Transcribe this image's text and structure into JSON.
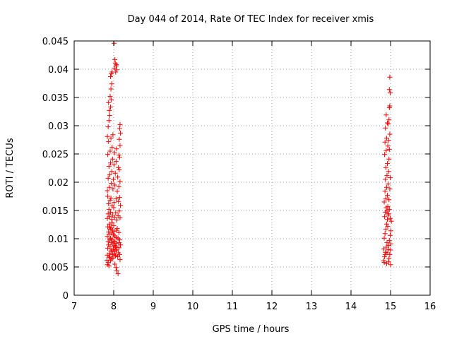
{
  "chart_data": {
    "type": "scatter",
    "title": "Day 044 of 2014, Rate Of TEC Index for receiver xmis",
    "xlabel": "GPS time / hours",
    "ylabel": "ROTI / TECUs",
    "xlim": [
      7,
      16
    ],
    "ylim": [
      0,
      0.045
    ],
    "xticks": [
      7,
      8,
      9,
      10,
      11,
      12,
      13,
      14,
      15,
      16
    ],
    "yticks": [
      0,
      0.005,
      0.01,
      0.015,
      0.02,
      0.025,
      0.03,
      0.035,
      0.04,
      0.045
    ],
    "xtick_labels": [
      "7",
      "8",
      "9",
      "10",
      "11",
      "12",
      "13",
      "14",
      "15",
      "16"
    ],
    "ytick_labels": [
      "0",
      "0.005",
      "0.01",
      "0.015",
      "0.02",
      "0.025",
      "0.03",
      "0.035",
      "0.04",
      "0.045"
    ],
    "grid": true,
    "marker": "+",
    "colors": {
      "points": "#ff0000",
      "grid": "#a0a0a0",
      "axes": "#000000"
    },
    "series": [
      {
        "name": "ROTI",
        "points": [
          [
            7.83,
            0.0062
          ],
          [
            7.84,
            0.0071
          ],
          [
            7.85,
            0.0083
          ],
          [
            7.86,
            0.0095
          ],
          [
            7.84,
            0.0104
          ],
          [
            7.87,
            0.0112
          ],
          [
            7.85,
            0.0121
          ],
          [
            7.88,
            0.0067
          ],
          [
            7.86,
            0.0058
          ],
          [
            7.89,
            0.0074
          ],
          [
            7.87,
            0.0089
          ],
          [
            7.9,
            0.0098
          ],
          [
            7.88,
            0.0108
          ],
          [
            7.91,
            0.0117
          ],
          [
            7.89,
            0.0126
          ],
          [
            7.92,
            0.0061
          ],
          [
            7.9,
            0.0069
          ],
          [
            7.93,
            0.0078
          ],
          [
            7.91,
            0.0086
          ],
          [
            7.94,
            0.0093
          ],
          [
            7.92,
            0.0101
          ],
          [
            7.95,
            0.011
          ],
          [
            7.93,
            0.0119
          ],
          [
            7.96,
            0.0128
          ],
          [
            7.94,
            0.0064
          ],
          [
            7.97,
            0.0072
          ],
          [
            7.95,
            0.008
          ],
          [
            7.98,
            0.0091
          ],
          [
            7.96,
            0.0099
          ],
          [
            7.99,
            0.0107
          ],
          [
            7.97,
            0.0115
          ],
          [
            8.0,
            0.0123
          ],
          [
            7.98,
            0.0066
          ],
          [
            8.01,
            0.0073
          ],
          [
            7.99,
            0.0082
          ],
          [
            8.02,
            0.0088
          ],
          [
            8.0,
            0.0096
          ],
          [
            8.03,
            0.0105
          ],
          [
            8.01,
            0.0113
          ],
          [
            8.04,
            0.0069
          ],
          [
            8.02,
            0.0077
          ],
          [
            8.05,
            0.0085
          ],
          [
            8.03,
            0.0094
          ],
          [
            8.06,
            0.0102
          ],
          [
            8.04,
            0.0087
          ],
          [
            8.07,
            0.0079
          ],
          [
            8.05,
            0.0071
          ],
          [
            8.08,
            0.0092
          ],
          [
            8.06,
            0.0081
          ],
          [
            8.1,
            0.0068
          ],
          [
            8.12,
            0.0075
          ],
          [
            8.13,
            0.0084
          ],
          [
            8.14,
            0.0093
          ],
          [
            8.15,
            0.0072
          ],
          [
            8.16,
            0.0063
          ],
          [
            8.17,
            0.0089
          ],
          [
            8.11,
            0.0101
          ],
          [
            8.13,
            0.0111
          ],
          [
            8.15,
            0.0098
          ],
          [
            8.09,
            0.0118
          ],
          [
            7.84,
            0.0136
          ],
          [
            7.86,
            0.0144
          ],
          [
            7.88,
            0.0152
          ],
          [
            7.9,
            0.0139
          ],
          [
            7.92,
            0.0147
          ],
          [
            7.95,
            0.0134
          ],
          [
            7.97,
            0.0142
          ],
          [
            8.0,
            0.0155
          ],
          [
            8.02,
            0.0138
          ],
          [
            8.05,
            0.0146
          ],
          [
            8.08,
            0.0133
          ],
          [
            8.11,
            0.0141
          ],
          [
            8.14,
            0.0149
          ],
          [
            8.16,
            0.0137
          ],
          [
            7.87,
            0.0162
          ],
          [
            7.91,
            0.0168
          ],
          [
            7.96,
            0.0158
          ],
          [
            8.01,
            0.0164
          ],
          [
            8.06,
            0.0171
          ],
          [
            8.12,
            0.0166
          ],
          [
            8.17,
            0.0159
          ],
          [
            7.85,
            0.0175
          ],
          [
            7.93,
            0.0172
          ],
          [
            8.15,
            0.0173
          ],
          [
            7.84,
            0.0185
          ],
          [
            7.89,
            0.0191
          ],
          [
            7.94,
            0.0198
          ],
          [
            7.98,
            0.0188
          ],
          [
            8.03,
            0.0195
          ],
          [
            8.09,
            0.0184
          ],
          [
            8.13,
            0.0192
          ],
          [
            8.16,
            0.0201
          ],
          [
            7.86,
            0.0207
          ],
          [
            7.9,
            0.0213
          ],
          [
            7.95,
            0.0219
          ],
          [
            7.99,
            0.0205
          ],
          [
            8.04,
            0.0216
          ],
          [
            8.1,
            0.0209
          ],
          [
            8.14,
            0.0222
          ],
          [
            7.88,
            0.0228
          ],
          [
            7.92,
            0.0234
          ],
          [
            7.97,
            0.0241
          ],
          [
            8.01,
            0.0231
          ],
          [
            8.06,
            0.0237
          ],
          [
            8.12,
            0.0226
          ],
          [
            8.15,
            0.0244
          ],
          [
            7.85,
            0.0249
          ],
          [
            7.91,
            0.0255
          ],
          [
            7.96,
            0.0262
          ],
          [
            8.02,
            0.0252
          ],
          [
            8.07,
            0.0259
          ],
          [
            8.13,
            0.0248
          ],
          [
            8.16,
            0.0265
          ],
          [
            7.87,
            0.0272
          ],
          [
            7.93,
            0.0278
          ],
          [
            7.98,
            0.0284
          ],
          [
            8.14,
            0.0276
          ],
          [
            8.17,
            0.0287
          ],
          [
            7.84,
            0.0281
          ],
          [
            8.15,
            0.0295
          ],
          [
            8.16,
            0.0302
          ],
          [
            7.86,
            0.0298
          ],
          [
            7.88,
            0.0309
          ],
          [
            7.9,
            0.0318
          ],
          [
            7.89,
            0.0327
          ],
          [
            7.92,
            0.0333
          ],
          [
            7.87,
            0.0341
          ],
          [
            7.91,
            0.0352
          ],
          [
            7.94,
            0.0346
          ],
          [
            7.93,
            0.0365
          ],
          [
            7.95,
            0.0374
          ],
          [
            7.92,
            0.0387
          ],
          [
            7.96,
            0.0395
          ],
          [
            7.94,
            0.0392
          ],
          [
            8.02,
            0.0402
          ],
          [
            8.04,
            0.0411
          ],
          [
            8.06,
            0.0406
          ],
          [
            8.08,
            0.0399
          ],
          [
            8.03,
            0.0417
          ],
          [
            8.05,
            0.0395
          ],
          [
            8.07,
            0.0408
          ],
          [
            8.01,
            0.0446
          ],
          [
            8.03,
            0.0055
          ],
          [
            8.06,
            0.0049
          ],
          [
            8.08,
            0.0043
          ],
          [
            8.11,
            0.0038
          ],
          [
            7.84,
            0.0054
          ],
          [
            7.88,
            0.0052
          ],
          [
            7.9,
            0.0121
          ],
          [
            8.07,
            0.0115
          ],
          [
            14.83,
            0.0061
          ],
          [
            14.85,
            0.0068
          ],
          [
            14.87,
            0.0076
          ],
          [
            14.89,
            0.0085
          ],
          [
            14.91,
            0.0093
          ],
          [
            14.84,
            0.0101
          ],
          [
            14.86,
            0.0109
          ],
          [
            14.88,
            0.0117
          ],
          [
            14.9,
            0.0126
          ],
          [
            14.92,
            0.0134
          ],
          [
            14.94,
            0.0142
          ],
          [
            14.96,
            0.0065
          ],
          [
            14.98,
            0.0072
          ],
          [
            15.0,
            0.008
          ],
          [
            14.95,
            0.0088
          ],
          [
            14.97,
            0.0097
          ],
          [
            14.99,
            0.0106
          ],
          [
            15.01,
            0.0114
          ],
          [
            14.93,
            0.0122
          ],
          [
            15.02,
            0.0131
          ],
          [
            14.85,
            0.0139
          ],
          [
            14.87,
            0.0147
          ],
          [
            14.89,
            0.0155
          ],
          [
            14.91,
            0.0149
          ],
          [
            14.93,
            0.0157
          ],
          [
            14.95,
            0.0144
          ],
          [
            14.97,
            0.0152
          ],
          [
            14.99,
            0.0136
          ],
          [
            14.84,
            0.0165
          ],
          [
            14.88,
            0.0171
          ],
          [
            14.92,
            0.0177
          ],
          [
            14.96,
            0.0169
          ],
          [
            14.86,
            0.0184
          ],
          [
            14.9,
            0.0191
          ],
          [
            14.94,
            0.0197
          ],
          [
            14.98,
            0.0188
          ],
          [
            14.87,
            0.0205
          ],
          [
            14.91,
            0.0212
          ],
          [
            14.95,
            0.0219
          ],
          [
            14.99,
            0.0208
          ],
          [
            14.88,
            0.0226
          ],
          [
            14.92,
            0.0233
          ],
          [
            14.96,
            0.0241
          ],
          [
            14.85,
            0.0249
          ],
          [
            14.89,
            0.0256
          ],
          [
            14.93,
            0.0264
          ],
          [
            14.97,
            0.0258
          ],
          [
            14.86,
            0.0271
          ],
          [
            14.9,
            0.0278
          ],
          [
            14.95,
            0.0274
          ],
          [
            14.98,
            0.0285
          ],
          [
            14.87,
            0.0296
          ],
          [
            14.92,
            0.0305
          ],
          [
            14.96,
            0.0311
          ],
          [
            14.89,
            0.0319
          ],
          [
            14.94,
            0.0303
          ],
          [
            14.97,
            0.0332
          ],
          [
            14.98,
            0.0335
          ],
          [
            14.99,
            0.0358
          ],
          [
            14.97,
            0.0364
          ],
          [
            14.98,
            0.0386
          ],
          [
            14.84,
            0.0058
          ],
          [
            14.9,
            0.0056
          ],
          [
            14.95,
            0.0059
          ],
          [
            15.0,
            0.0054
          ],
          [
            14.86,
            0.0072
          ],
          [
            14.94,
            0.0081
          ],
          [
            15.01,
            0.0091
          ],
          [
            14.83,
            0.0082
          ],
          [
            14.91,
            0.0075
          ]
        ]
      }
    ]
  }
}
